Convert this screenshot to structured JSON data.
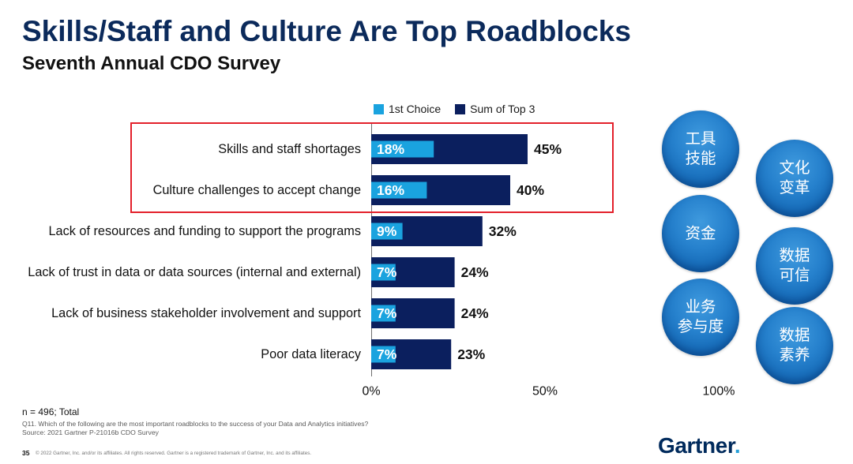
{
  "header": {
    "title": "Skills/Staff and Culture Are Top Roadblocks",
    "subtitle": "Seventh Annual CDO Survey"
  },
  "chart_data": {
    "type": "bar",
    "horizontal": true,
    "categories": [
      "Skills and staff shortages",
      "Culture challenges to accept change",
      "Lack of resources and funding to support the programs",
      "Lack of trust in data or data sources (internal and external)",
      "Lack of business stakeholder involvement and support",
      "Poor data literacy"
    ],
    "series": [
      {
        "name": "1st Choice",
        "values": [
          18,
          16,
          9,
          7,
          7,
          7
        ],
        "labels": [
          "18%",
          "16%",
          "9%",
          "7%",
          "7%",
          "7%"
        ],
        "color": "#1aa3df"
      },
      {
        "name": "Sum of Top 3",
        "values": [
          45,
          40,
          32,
          24,
          24,
          23
        ],
        "labels": [
          "45%",
          "40%",
          "32%",
          "24%",
          "24%",
          "23%"
        ],
        "color": "#0b1f5e"
      }
    ],
    "xlim": [
      0,
      100
    ],
    "x_ticks": [
      0,
      50,
      100
    ],
    "x_tick_labels": [
      "0%",
      "50%",
      "100%"
    ],
    "grid": false,
    "legend_position": "top",
    "highlighted_rows": [
      0,
      1
    ],
    "highlight_color": "#e3202b"
  },
  "bubbles": [
    {
      "lines": [
        "工具",
        "技能"
      ]
    },
    {
      "lines": [
        "文化",
        "变革"
      ]
    },
    {
      "lines": [
        "资金"
      ]
    },
    {
      "lines": [
        "数据",
        "可信"
      ]
    },
    {
      "lines": [
        "业务",
        "参与度"
      ]
    },
    {
      "lines": [
        "数据",
        "素养"
      ]
    }
  ],
  "notes": {
    "sample": "n = 496; Total",
    "question": "Q11. Which of the following are the most important roadblocks to the success of your Data and Analytics initiatives?",
    "source": "Source: 2021 Gartner P-21016b CDO Survey"
  },
  "footer": {
    "page_number": "35",
    "copyright": "© 2022 Gartner, Inc. and/or its affiliates. All rights reserved. Gartner is a registered trademark of Gartner, Inc. and its affiliates."
  },
  "logo": {
    "text": "Gartner",
    "dot": "."
  },
  "colors": {
    "title": "#0b2a5b",
    "logo": "#002a5c",
    "logo_dot": "#27a0d9"
  }
}
